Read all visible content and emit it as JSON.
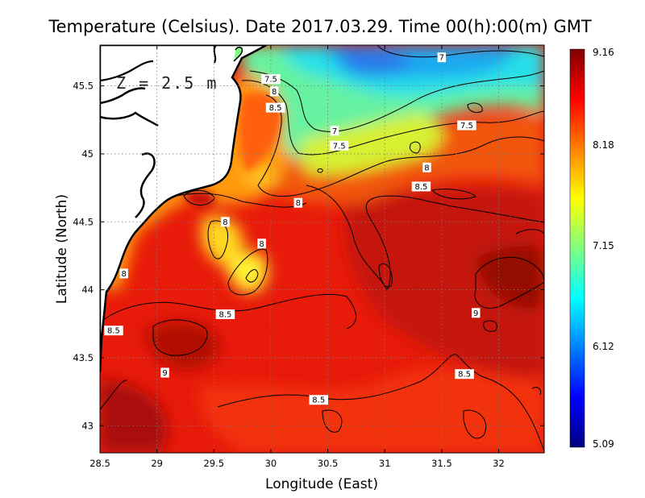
{
  "chart_data": {
    "type": "heatmap",
    "title": "Temperature (Celsius). Date 2017.03.29. Time 00(h):00(m) GMT",
    "xlabel": "Longitude (East)",
    "ylabel": "Latitude (North)",
    "annotation": "Z = 2.5 m",
    "xlim": [
      28.5,
      32.4
    ],
    "ylim": [
      42.8,
      45.8
    ],
    "x_ticks": [
      28.5,
      29,
      29.5,
      30,
      30.5,
      31,
      31.5,
      32
    ],
    "x_tick_labels": [
      "28.5",
      "29",
      "29.5",
      "30",
      "30.5",
      "31",
      "31.5",
      "32"
    ],
    "y_ticks": [
      43,
      43.5,
      44,
      44.5,
      45,
      45.5
    ],
    "y_tick_labels": [
      "43",
      "43.5",
      "44",
      "44.5",
      "45",
      "45.5"
    ],
    "grid": true,
    "colorbar": {
      "min": 5.09,
      "max": 9.16,
      "ticks": [
        9.16,
        8.18,
        7.15,
        6.12,
        5.09
      ],
      "tick_labels": [
        "9.16",
        "8.18",
        "7.15",
        "6.12",
        "5.09"
      ],
      "colors": [
        "#000080",
        "#0000ff",
        "#0080ff",
        "#00ffff",
        "#80ff80",
        "#ffff00",
        "#ff8000",
        "#ff0000",
        "#800000"
      ]
    },
    "contour_labels": [
      {
        "text": "7",
        "lon": 31.5,
        "lat": 45.71
      },
      {
        "text": "7.5",
        "lon": 30.0,
        "lat": 45.55
      },
      {
        "text": "8",
        "lon": 30.03,
        "lat": 45.46
      },
      {
        "text": "8.5",
        "lon": 30.04,
        "lat": 45.34
      },
      {
        "text": "7",
        "lon": 30.56,
        "lat": 45.17
      },
      {
        "text": "7.5",
        "lon": 30.6,
        "lat": 45.06
      },
      {
        "text": "7.5",
        "lon": 31.72,
        "lat": 45.21
      },
      {
        "text": "8",
        "lon": 31.37,
        "lat": 44.9
      },
      {
        "text": "8.5",
        "lon": 31.32,
        "lat": 44.76
      },
      {
        "text": "8",
        "lon": 30.24,
        "lat": 44.64
      },
      {
        "text": "8",
        "lon": 29.6,
        "lat": 44.5
      },
      {
        "text": "8",
        "lon": 29.92,
        "lat": 44.34
      },
      {
        "text": "8",
        "lon": 28.71,
        "lat": 44.12
      },
      {
        "text": "8.5",
        "lon": 29.6,
        "lat": 43.82
      },
      {
        "text": "9",
        "lon": 31.8,
        "lat": 43.83
      },
      {
        "text": "8.5",
        "lon": 28.62,
        "lat": 43.7
      },
      {
        "text": "9",
        "lon": 29.07,
        "lat": 43.39
      },
      {
        "text": "8.5",
        "lon": 31.7,
        "lat": 43.38
      },
      {
        "text": "8.5",
        "lon": 30.42,
        "lat": 43.19
      }
    ]
  }
}
